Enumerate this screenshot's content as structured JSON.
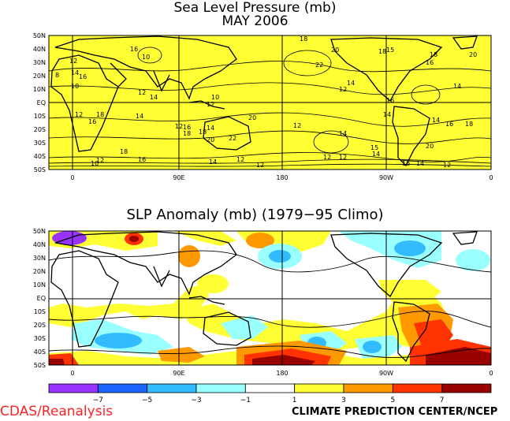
{
  "top_panel": {
    "title_line1": "Sea Level Pressure (mb)",
    "title_line2": "MAY 2006",
    "lat_labels": [
      "50N",
      "40N",
      "30N",
      "20N",
      "10N",
      "EQ",
      "10S",
      "20S",
      "30S",
      "40S",
      "50S"
    ],
    "lon_labels": [
      "0",
      "90E",
      "180",
      "90W",
      "0"
    ],
    "fill_color": "#ffff33",
    "contour_labels": [
      "18",
      "20",
      "18",
      "16",
      "10",
      "12",
      "14",
      "16",
      "8",
      "10",
      "12",
      "14",
      "22",
      "18",
      "20",
      "16",
      "14",
      "12",
      "15",
      "14",
      "10",
      "12",
      "16",
      "18",
      "20",
      "22",
      "14",
      "12",
      "16",
      "18",
      "14",
      "12",
      "18",
      "20",
      "12",
      "14",
      "12",
      "12",
      "15",
      "14",
      "14",
      "12",
      "12",
      "16",
      "14",
      "16",
      "18",
      "20",
      "14",
      "12",
      "10",
      "16",
      "18",
      "14",
      "16",
      "12"
    ]
  },
  "bottom_panel": {
    "title": "SLP Anomaly (mb) (1979−95 Climo)",
    "lat_labels": [
      "50N",
      "40N",
      "30N",
      "20N",
      "10N",
      "EQ",
      "10S",
      "20S",
      "30S",
      "40S",
      "50S"
    ],
    "lon_labels": [
      "0",
      "90E",
      "180",
      "90W",
      "0"
    ]
  },
  "colorbar": {
    "tick_labels": [
      "−7",
      "−5",
      "−3",
      "−1",
      "1",
      "3",
      "5",
      "7"
    ],
    "colors": [
      "#9933ff",
      "#1a66ff",
      "#33bbff",
      "#99ffff",
      "#ffffff",
      "#ffff33",
      "#ff9900",
      "#ff3300",
      "#990000"
    ]
  },
  "footer": {
    "left": "CDAS/Reanalysis",
    "right": "CLIMATE PREDICTION CENTER/NCEP"
  }
}
